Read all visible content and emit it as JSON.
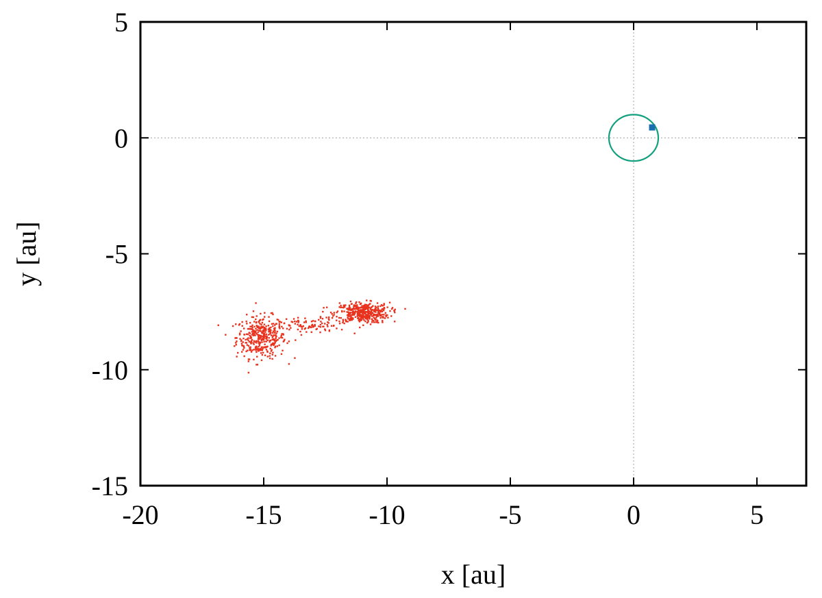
{
  "chart_data": {
    "type": "scatter",
    "xlabel": "x [au]",
    "ylabel": "y [au]",
    "xlim": [
      -20,
      7
    ],
    "ylim": [
      -15,
      5
    ],
    "x_ticks": [
      -20,
      -15,
      -10,
      -5,
      0,
      5
    ],
    "y_ticks": [
      -15,
      -10,
      -5,
      0,
      5
    ],
    "zero_lines": true,
    "colors": {
      "cloud": "#e8321e",
      "orbit": "#13a07e",
      "planet": "#1a6fb0",
      "zero_line": "#a0a0a0"
    },
    "series": [
      {
        "kind": "cluster-cloud",
        "clusters": [
          {
            "cx": -15.1,
            "cy": -8.6,
            "sx": 0.5,
            "sy": 0.45,
            "n": 380
          },
          {
            "cx": -11.0,
            "cy": -7.55,
            "sx": 0.55,
            "sy": 0.22,
            "n": 420
          },
          {
            "cx": -13.2,
            "cy": -8.1,
            "sx": 0.6,
            "sy": 0.18,
            "n": 90
          }
        ]
      },
      {
        "kind": "orbit",
        "cx": 0,
        "cy": 0,
        "r": 1.0
      },
      {
        "kind": "planet",
        "x": 0.75,
        "y": 0.45
      }
    ]
  }
}
